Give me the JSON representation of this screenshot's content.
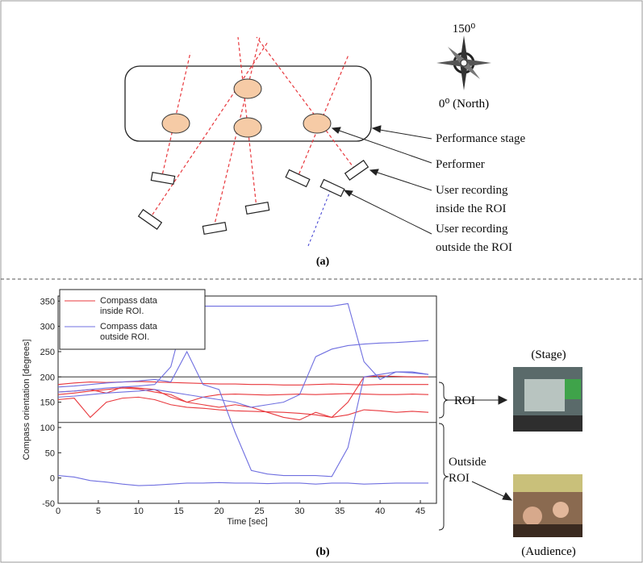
{
  "diagram": {
    "panel_label": "(a)",
    "compass": {
      "top": "150⁰",
      "bottom": "0⁰ (North)"
    },
    "labels": [
      "Performance stage",
      "Performer",
      "User recording inside the ROI",
      "User recording outside the ROI"
    ]
  },
  "chart_data": {
    "type": "line",
    "xlabel": "Time [sec]",
    "ylabel": "Compass orientation [degrees]",
    "x": [
      0,
      2,
      4,
      6,
      8,
      10,
      12,
      14,
      16,
      18,
      20,
      22,
      24,
      26,
      28,
      30,
      32,
      34,
      36,
      38,
      40,
      42,
      44,
      46
    ],
    "xlim": [
      0,
      47
    ],
    "xticks": [
      0,
      5,
      10,
      15,
      20,
      25,
      30,
      35,
      40,
      45
    ],
    "ylim": [
      -50,
      360
    ],
    "yticks": [
      -50,
      0,
      50,
      100,
      150,
      200,
      250,
      300,
      350
    ],
    "roi_bounds": [
      110,
      200
    ],
    "series": [
      {
        "name": "Compass data inside ROI.",
        "color": "#e8383d",
        "lines": [
          [
            185,
            188,
            190,
            189,
            190,
            191,
            190,
            189,
            188,
            187,
            186,
            186,
            185,
            185,
            184,
            184,
            185,
            186,
            185,
            184,
            185,
            185,
            185,
            185
          ],
          [
            165,
            168,
            172,
            175,
            178,
            176,
            170,
            165,
            150,
            160,
            165,
            166,
            165,
            164,
            165,
            166,
            165,
            166,
            167,
            166,
            165,
            165,
            166,
            165
          ],
          [
            155,
            158,
            120,
            150,
            158,
            160,
            155,
            145,
            140,
            138,
            135,
            133,
            132,
            131,
            130,
            128,
            125,
            120,
            125,
            135,
            133,
            130,
            132,
            130
          ],
          [
            170,
            172,
            175,
            168,
            180,
            178,
            175,
            160,
            150,
            145,
            140,
            145,
            140,
            130,
            120,
            115,
            130,
            120,
            150,
            200,
            202,
            201,
            200,
            200
          ]
        ]
      },
      {
        "name": "Compass data outside ROI.",
        "color": "#6f6fe0",
        "lines": [
          [
            170,
            172,
            175,
            178,
            180,
            182,
            185,
            220,
            340,
            340,
            340,
            340,
            340,
            340,
            340,
            340,
            340,
            340,
            345,
            230,
            195,
            210,
            208,
            205
          ],
          [
            180,
            182,
            185,
            188,
            190,
            192,
            195,
            190,
            250,
            185,
            175,
            90,
            15,
            8,
            5,
            5,
            5,
            3,
            60,
            200,
            205,
            210,
            210,
            205
          ],
          [
            160,
            162,
            165,
            168,
            170,
            172,
            175,
            170,
            165,
            160,
            155,
            150,
            140,
            145,
            150,
            165,
            240,
            255,
            262,
            265,
            267,
            268,
            270,
            272
          ],
          [
            5,
            2,
            -5,
            -8,
            -12,
            -15,
            -14,
            -12,
            -10,
            -10,
            -9,
            -10,
            -10,
            -11,
            -10,
            -10,
            -12,
            -10,
            -10,
            -12,
            -11,
            -10,
            -10,
            -10
          ]
        ]
      }
    ],
    "roi_label": "ROI",
    "outside_label": "Outside ROI",
    "stage_caption": "(Stage)",
    "audience_caption": "(Audience)",
    "panel_label": "(b)"
  }
}
